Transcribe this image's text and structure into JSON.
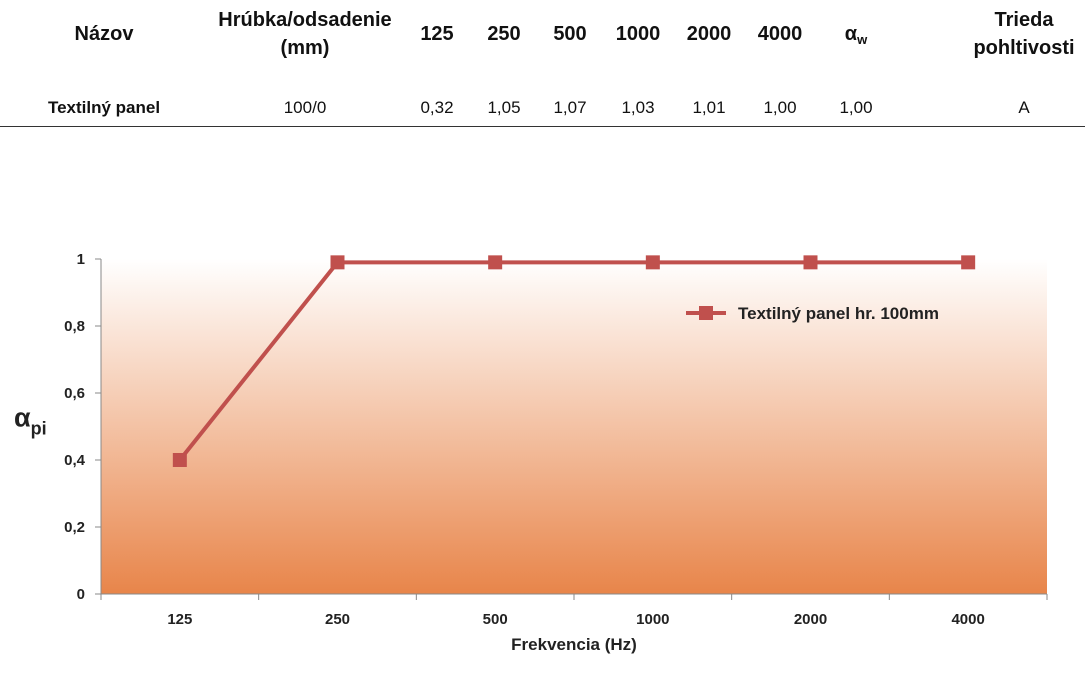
{
  "table": {
    "headers": {
      "name": "Názov",
      "thickness_line1": "Hrúbka/odsadenie",
      "thickness_line2": "(mm)",
      "f125": "125",
      "f250": "250",
      "f500": "500",
      "f1000": "1000",
      "f2000": "2000",
      "f4000": "4000",
      "alpha_symbol": "α",
      "alpha_sub": "w",
      "class_line1": "Trieda",
      "class_line2": "pohltivosti"
    },
    "row": {
      "name": "Textilný panel",
      "thickness": "100/0",
      "f125": "0,32",
      "f250": "1,05",
      "f500": "1,07",
      "f1000": "1,03",
      "f2000": "1,01",
      "f4000": "1,00",
      "alpha_w": "1,00",
      "class": "A"
    }
  },
  "chart_data": {
    "type": "line",
    "categories": [
      "125",
      "250",
      "500",
      "1000",
      "2000",
      "4000"
    ],
    "series": [
      {
        "name": "Textilný panel hr. 100mm",
        "values": [
          0.4,
          0.99,
          0.99,
          0.99,
          0.99,
          0.99
        ],
        "color": "#c0504d"
      }
    ],
    "xlabel": "Frekvencia (Hz)",
    "ylabel_symbol": "α",
    "ylabel_sub": "pi",
    "ylim": [
      0,
      1
    ],
    "yticks": [
      0,
      0.2,
      0.4,
      0.6,
      0.8,
      1
    ],
    "ytick_labels": [
      "0",
      "0,2",
      "0,4",
      "0,6",
      "0,8",
      "1"
    ],
    "legend_position": "top-right",
    "background_gradient": [
      "#ffffff",
      "#e8854a"
    ],
    "grid": false
  }
}
